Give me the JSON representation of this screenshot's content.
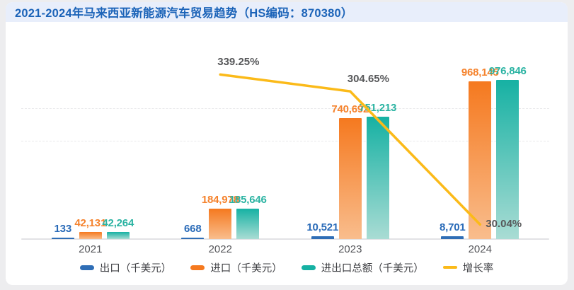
{
  "page": {
    "title": "2021-2024年马来西亚新能源汽车贸易趋势（HS编码：870380）"
  },
  "chart_data": {
    "type": "bar",
    "title": "2021-2024年马来西亚新能源汽车贸易趋势（HS编码：870380）",
    "categories": [
      "2021",
      "2022",
      "2023",
      "2024"
    ],
    "series": [
      {
        "id": "export",
        "name": "出口（千美元）",
        "type": "bar",
        "color": "#2f6eb6",
        "label_color": "#2a6bb8",
        "values": [
          133,
          668,
          10521,
          8701
        ],
        "labels": [
          "133",
          "668",
          "10,521",
          "8,701"
        ]
      },
      {
        "id": "import",
        "name": "进口（千美元）",
        "type": "bar",
        "color": "#f5791f",
        "color_top": "#f5791f",
        "color_bottom": "#f9bd8d",
        "label_color": "#f5822c",
        "values": [
          42131,
          184978,
          740692,
          968145
        ],
        "labels": [
          "42,131",
          "184,978",
          "740,692",
          "968,145"
        ]
      },
      {
        "id": "total",
        "name": "进出口总额（千美元）",
        "type": "bar",
        "color": "#16b1a3",
        "color_top": "#16b1a3",
        "color_bottom": "#a9dcd4",
        "label_color": "#2ab3a2",
        "values": [
          42264,
          185646,
          751213,
          976846
        ],
        "labels": [
          "42,264",
          "185,646",
          "751,213",
          "976,846"
        ]
      },
      {
        "id": "growth_rate",
        "name": "增长率",
        "type": "line",
        "color": "#fbba19",
        "label_color": "#57585a",
        "values": [
          null,
          339.25,
          304.65,
          30.04
        ],
        "labels": [
          null,
          "339.25%",
          "304.65%",
          "30.04%"
        ]
      }
    ],
    "value_axis": {
      "min": 0,
      "max": 1250000,
      "gridline_values": [
        600000,
        800000
      ]
    },
    "percent_axis": {
      "min": 0,
      "max": 420
    },
    "xlabel": "",
    "ylabel": "",
    "legend_position": "bottom",
    "grid": "dashed-horizontal"
  }
}
